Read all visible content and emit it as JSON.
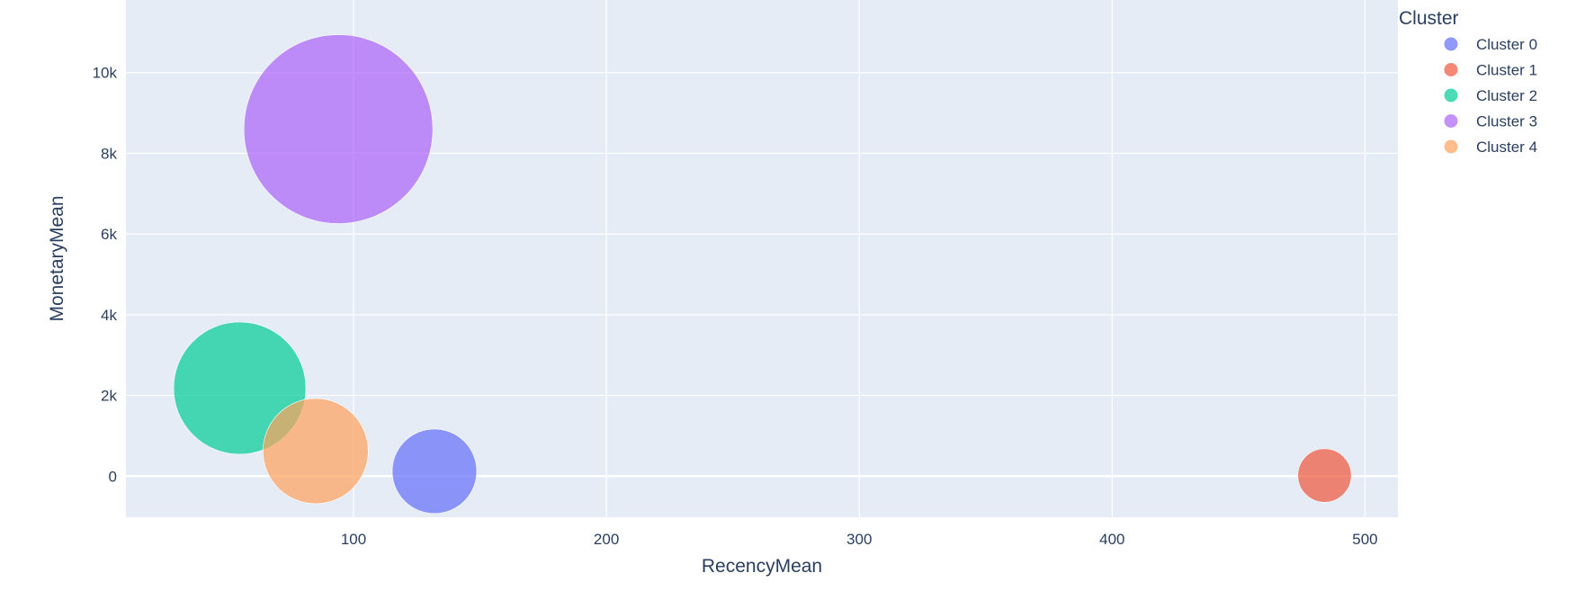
{
  "chart_data": {
    "type": "scatter",
    "subtype": "bubble",
    "title": "",
    "xlabel": "RecencyMean",
    "ylabel": "MonetaryMean",
    "xlim": [
      10,
      513
    ],
    "ylim": [
      -1020,
      11800
    ],
    "x_ticks": [
      100,
      200,
      300,
      400,
      500
    ],
    "x_tick_labels": [
      "100",
      "200",
      "300",
      "400",
      "500"
    ],
    "y_ticks": [
      0,
      2000,
      4000,
      6000,
      8000,
      10000
    ],
    "y_tick_labels": [
      "0",
      "2k",
      "4k",
      "6k",
      "8k",
      "10k"
    ],
    "grid": true,
    "legend": {
      "title": "Cluster",
      "position": "right"
    },
    "series": [
      {
        "name": "Cluster 0",
        "color": "#636efa",
        "x": [
          132
        ],
        "y": [
          120
        ],
        "size": 0.2
      },
      {
        "name": "Cluster 1",
        "color": "#ef553b",
        "x": [
          484
        ],
        "y": [
          15
        ],
        "size": 0.08
      },
      {
        "name": "Cluster 2",
        "color": "#00cc96",
        "x": [
          55
        ],
        "y": [
          2180
        ],
        "size": 0.49
      },
      {
        "name": "Cluster 3",
        "color": "#ab63fa",
        "x": [
          94
        ],
        "y": [
          8600
        ],
        "size": 1.0
      },
      {
        "name": "Cluster 4",
        "color": "#ffa15a",
        "x": [
          85
        ],
        "y": [
          620
        ],
        "size": 0.31
      }
    ]
  },
  "colors": {
    "plot_background": "#e5ecf6",
    "grid": "#ffffff",
    "text": "#2a3f5f"
  }
}
